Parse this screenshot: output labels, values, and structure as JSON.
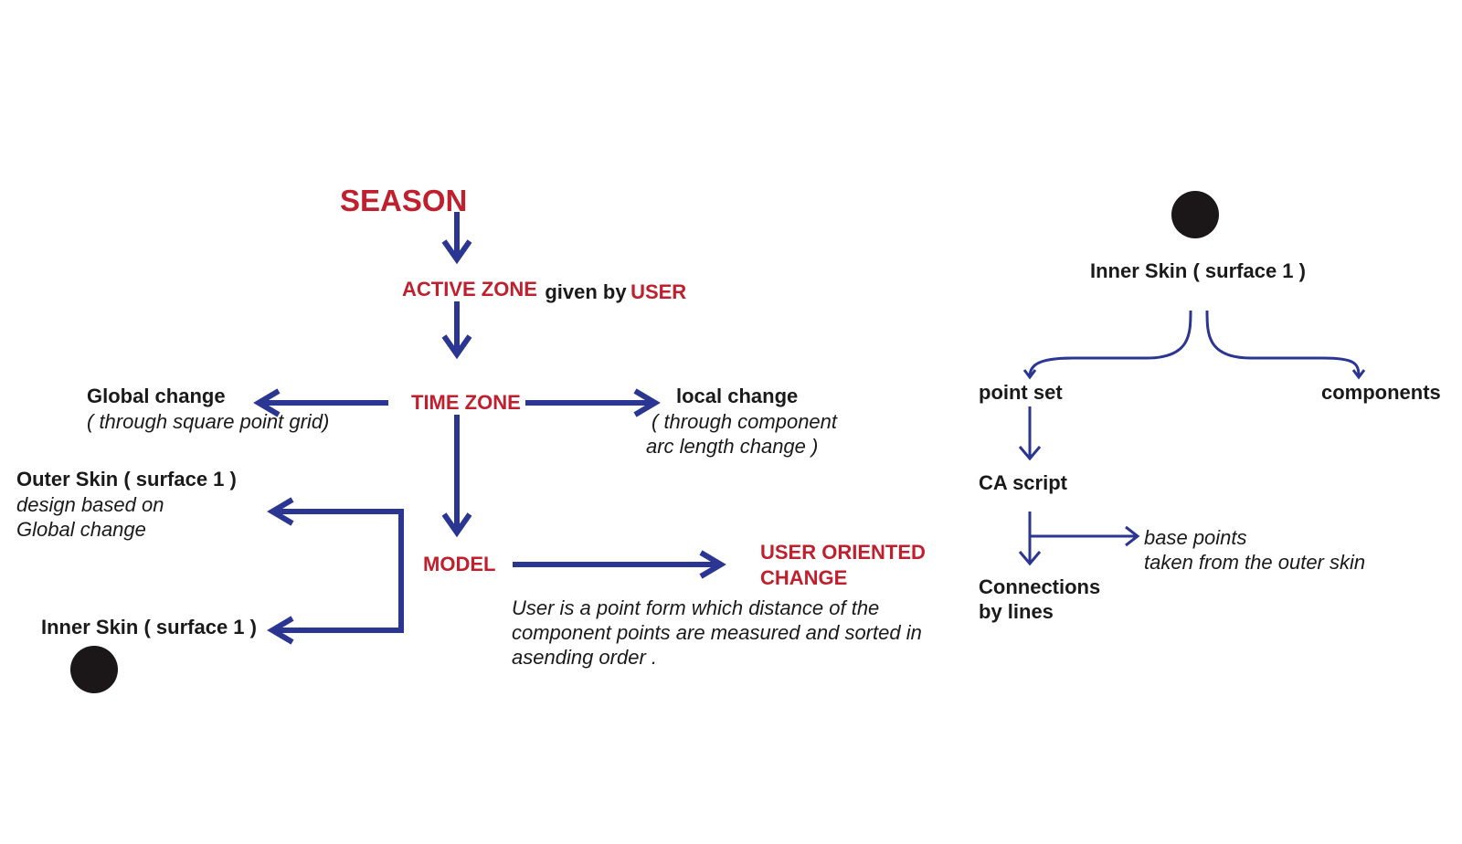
{
  "colors": {
    "arrow": "#2b3592",
    "label_red": "#c0202e",
    "text": "#1a1a1a",
    "dot": "#1b1718"
  },
  "left": {
    "season": "SEASON",
    "active_zone": "ACTIVE ZONE",
    "given_by": "given by",
    "user": "USER",
    "time_zone": "TIME ZONE",
    "global_change": {
      "title": "Global change",
      "desc": "( through square point grid)"
    },
    "local_change": {
      "title": "local change",
      "desc_line1": "( through component",
      "desc_line2": "arc length change )"
    },
    "outer_skin": {
      "title": "Outer Skin ( surface 1 )",
      "desc_line1": "design based on",
      "desc_line2": "Global change"
    },
    "inner_skin": {
      "title": "Inner Skin ( surface 1 )"
    },
    "model": "MODEL",
    "user_oriented": {
      "line1": "USER ORIENTED",
      "line2": "CHANGE"
    },
    "user_note": {
      "line1": "User is a point form which distance of the",
      "line2": "component points are measured and sorted in",
      "line3": "asending order ."
    }
  },
  "right": {
    "inner_skin": "Inner Skin ( surface 1 )",
    "point_set": "point set",
    "components": "components",
    "ca_script": "CA script",
    "connections": {
      "line1": "Connections",
      "line2": "by lines"
    },
    "base_points": {
      "line1": "base points",
      "line2": "taken from the outer skin"
    }
  }
}
